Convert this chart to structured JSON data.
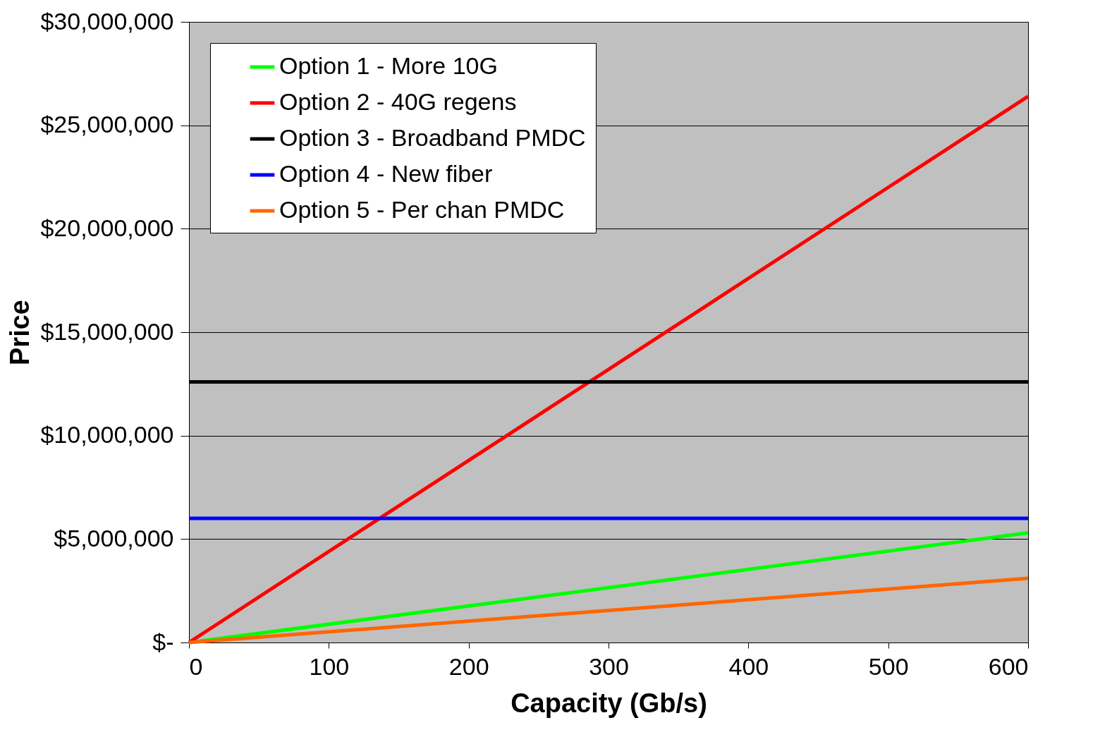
{
  "chart_data": {
    "type": "line",
    "xlabel": "Capacity (Gb/s)",
    "ylabel": "Price",
    "x": [
      0,
      600
    ],
    "xlim": [
      0,
      600
    ],
    "xticks": [
      0,
      100,
      200,
      300,
      400,
      500,
      600
    ],
    "ylim": [
      0,
      30000000
    ],
    "yticks": [
      {
        "value": 0,
        "label": "$-"
      },
      {
        "value": 5000000,
        "label": "$5,000,000"
      },
      {
        "value": 10000000,
        "label": "$10,000,000"
      },
      {
        "value": 15000000,
        "label": "$15,000,000"
      },
      {
        "value": 20000000,
        "label": "$20,000,000"
      },
      {
        "value": 25000000,
        "label": "$25,000,000"
      },
      {
        "value": 30000000,
        "label": "$30,000,000"
      }
    ],
    "grid": "y",
    "legend": "top left",
    "marker": "none",
    "line_style": "solid",
    "series": [
      {
        "name": "Option 1 - More 10G",
        "color": "#00ff00",
        "values": [
          0,
          5300000
        ]
      },
      {
        "name": "Option 2 - 40G regens",
        "color": "#ff0000",
        "values": [
          0,
          26400000
        ]
      },
      {
        "name": "Option 3 - Broadband PMDC",
        "color": "#000000",
        "values": [
          12600000,
          12600000
        ]
      },
      {
        "name": "Option 4 - New fiber",
        "color": "#0000ff",
        "values": [
          6000000,
          6000000
        ]
      },
      {
        "name": "Option 5 - Per chan PMDC",
        "color": "#ff6600",
        "values": [
          0,
          3100000
        ]
      }
    ]
  }
}
